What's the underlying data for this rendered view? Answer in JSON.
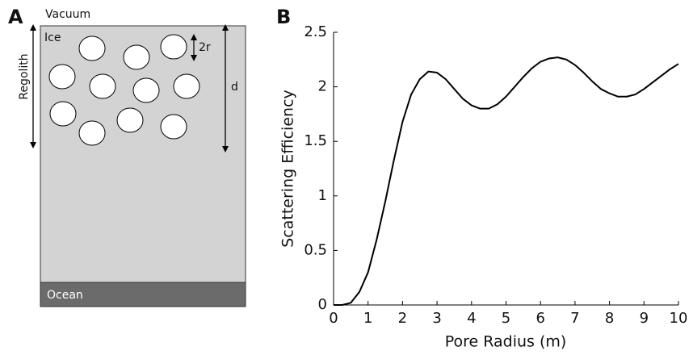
{
  "diagram": {
    "panel_label": "A",
    "vacuum": "Vacuum",
    "ice": "Ice",
    "regolith": "Regolith",
    "pore_diameter": "2r",
    "depth": "d",
    "ocean": "Ocean"
  },
  "chart_data": {
    "type": "line",
    "panel_label": "B",
    "x_label": "Pore Radius (m)",
    "y_label": "Scattering Efficiency",
    "x": [
      0,
      0.25,
      0.5,
      0.75,
      1,
      1.25,
      1.5,
      1.75,
      2,
      2.25,
      2.5,
      2.75,
      3,
      3.25,
      3.5,
      3.75,
      4,
      4.25,
      4.5,
      4.75,
      5,
      5.25,
      5.5,
      5.75,
      6,
      6.25,
      6.5,
      6.75,
      7,
      7.25,
      7.5,
      7.75,
      8,
      8.25,
      8.5,
      8.75,
      9,
      9.25,
      9.5,
      9.75,
      10
    ],
    "series": [
      {
        "color": "#000000",
        "values": [
          0,
          0,
          0.02,
          0.12,
          0.3,
          0.6,
          0.95,
          1.33,
          1.68,
          1.93,
          2.07,
          2.14,
          2.13,
          2.07,
          1.98,
          1.89,
          1.83,
          1.8,
          1.8,
          1.84,
          1.91,
          2.0,
          2.09,
          2.17,
          2.23,
          2.26,
          2.27,
          2.25,
          2.2,
          2.13,
          2.05,
          1.98,
          1.94,
          1.91,
          1.91,
          1.93,
          1.98,
          2.04,
          2.1,
          2.16,
          2.21
        ]
      }
    ],
    "xlim": [
      0,
      10
    ],
    "ylim": [
      0,
      2.5
    ],
    "xticks": [
      0,
      1,
      2,
      3,
      4,
      5,
      6,
      7,
      8,
      9,
      10
    ],
    "yticks": [
      0,
      0.5,
      1,
      1.5,
      2,
      2.5
    ]
  }
}
